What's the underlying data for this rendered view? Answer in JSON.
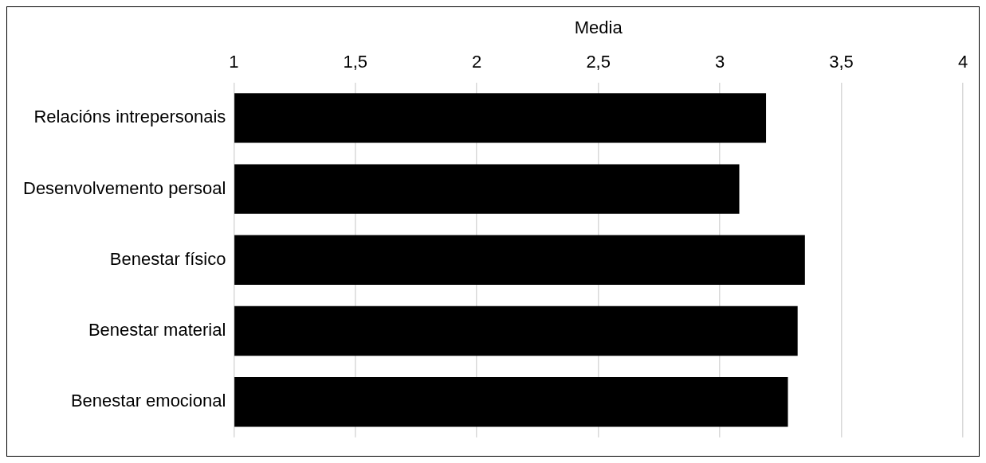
{
  "chart_data": {
    "type": "bar",
    "orientation": "horizontal",
    "xlabel": "Media",
    "categories": [
      "Relacións intrepersonais",
      "Desenvolvemento persoal",
      "Benestar físico",
      "Benestar material",
      "Benestar emocional"
    ],
    "values": [
      3.19,
      3.08,
      3.35,
      3.32,
      3.28
    ],
    "color": "#000000",
    "xlim": [
      1,
      4
    ],
    "xticks": [
      1,
      {
        "value": 1.5,
        "label": "1,5"
      },
      2,
      {
        "value": 2.5,
        "label": "2,5"
      },
      3,
      {
        "value": 3.5,
        "label": "3,5"
      },
      4
    ],
    "grid": "x"
  }
}
